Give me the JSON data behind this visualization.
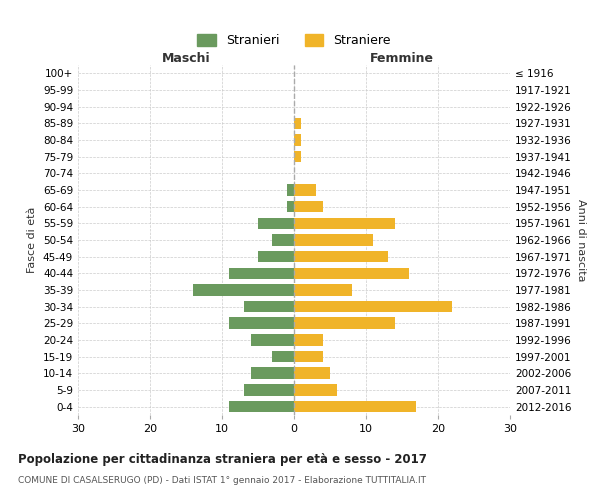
{
  "age_groups": [
    "100+",
    "95-99",
    "90-94",
    "85-89",
    "80-84",
    "75-79",
    "70-74",
    "65-69",
    "60-64",
    "55-59",
    "50-54",
    "45-49",
    "40-44",
    "35-39",
    "30-34",
    "25-29",
    "20-24",
    "15-19",
    "10-14",
    "5-9",
    "0-4"
  ],
  "birth_years": [
    "≤ 1916",
    "1917-1921",
    "1922-1926",
    "1927-1931",
    "1932-1936",
    "1937-1941",
    "1942-1946",
    "1947-1951",
    "1952-1956",
    "1957-1961",
    "1962-1966",
    "1967-1971",
    "1972-1976",
    "1977-1981",
    "1982-1986",
    "1987-1991",
    "1992-1996",
    "1997-2001",
    "2002-2006",
    "2007-2011",
    "2012-2016"
  ],
  "maschi": [
    0,
    0,
    0,
    0,
    0,
    0,
    0,
    1,
    1,
    5,
    3,
    5,
    9,
    14,
    7,
    9,
    6,
    3,
    6,
    7,
    9
  ],
  "femmine": [
    0,
    0,
    0,
    1,
    1,
    1,
    0,
    3,
    4,
    14,
    11,
    13,
    16,
    8,
    22,
    14,
    4,
    4,
    5,
    6,
    17
  ],
  "color_maschi": "#6a9a5e",
  "color_femmine": "#f0b429",
  "title": "Popolazione per cittadinanza straniera per età e sesso - 2017",
  "subtitle": "COMUNE DI CASALSERUGO (PD) - Dati ISTAT 1° gennaio 2017 - Elaborazione TUTTITALIA.IT",
  "xlabel_left": "Maschi",
  "xlabel_right": "Femmine",
  "ylabel_left": "Fasce di età",
  "ylabel_right": "Anni di nascita",
  "xlim": 30,
  "legend_maschi": "Stranieri",
  "legend_femmine": "Straniere",
  "background_color": "#ffffff",
  "grid_color": "#cccccc"
}
